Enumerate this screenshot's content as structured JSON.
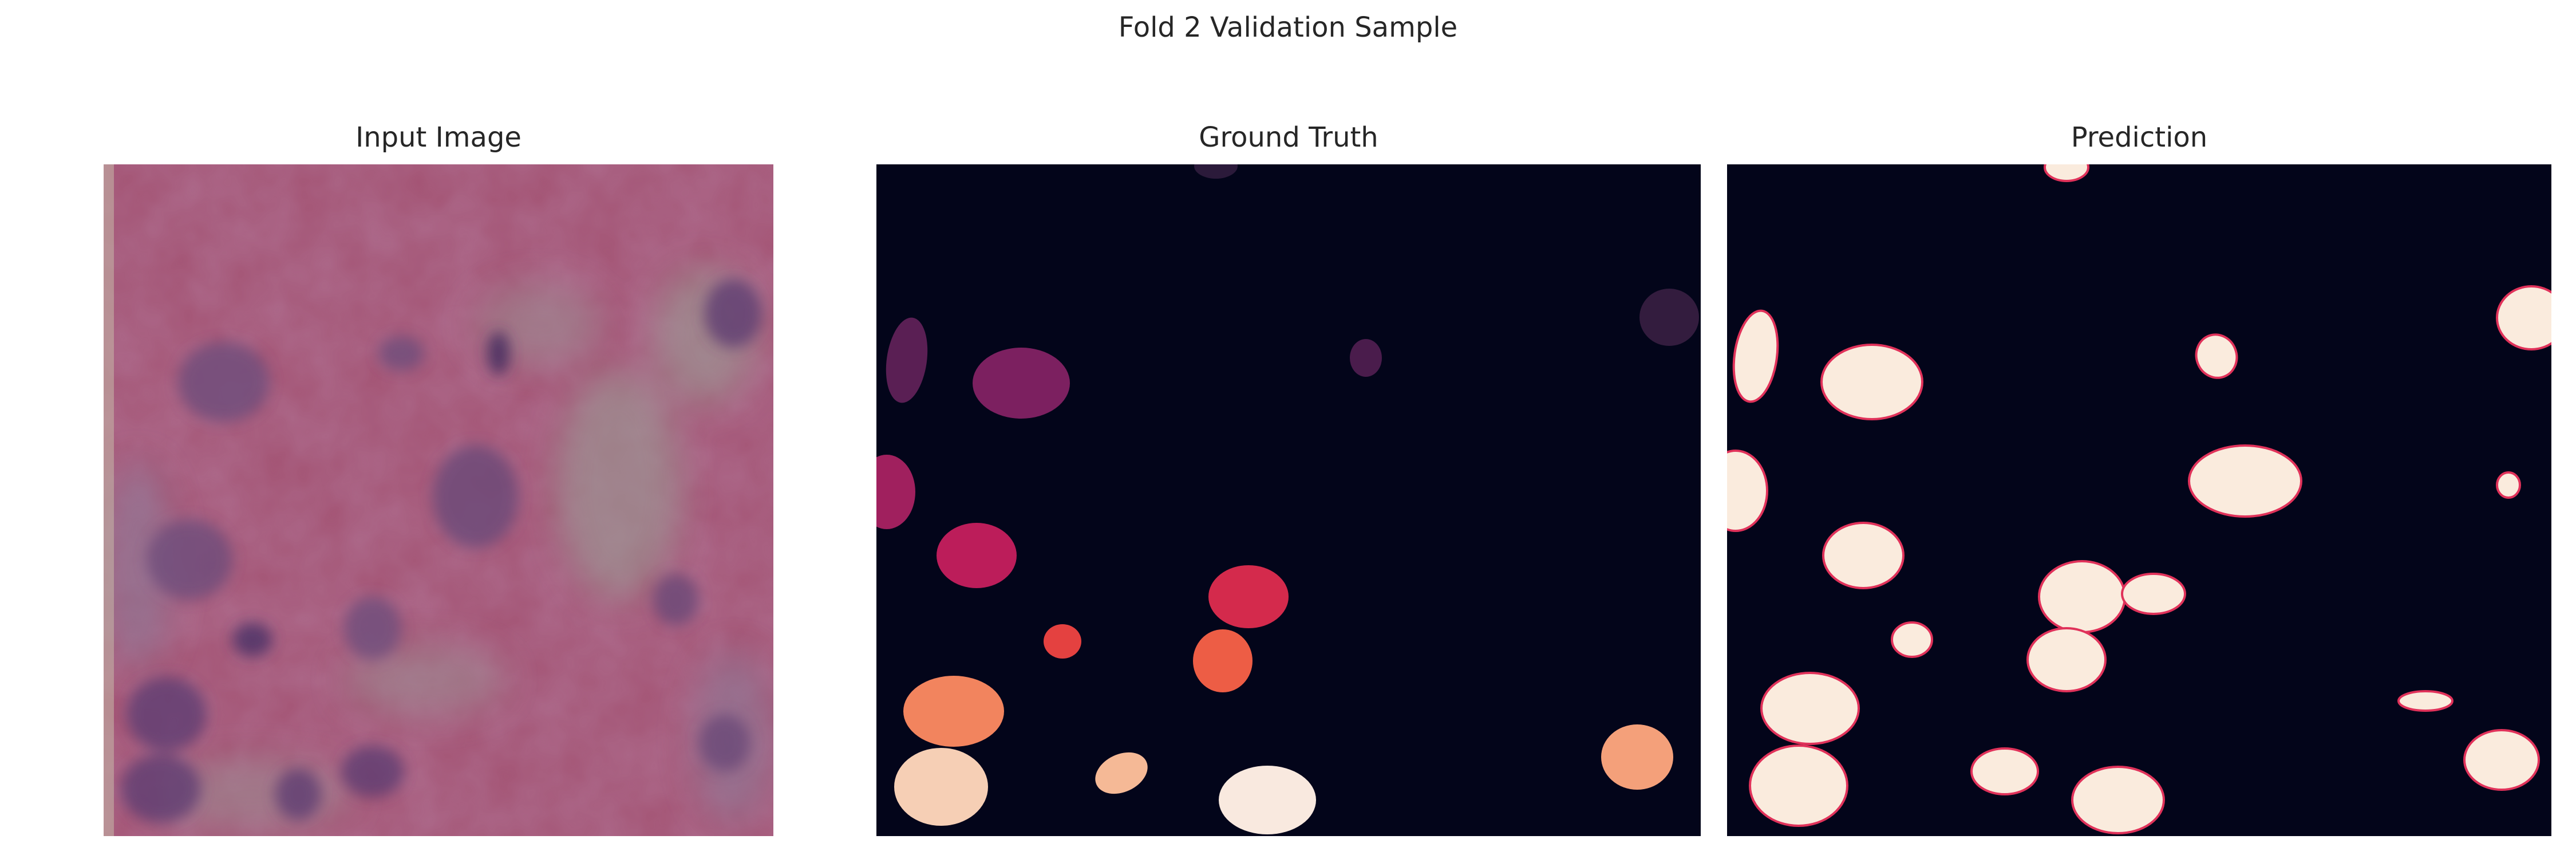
{
  "figure": {
    "title": "Fold 2 Validation Sample"
  },
  "panels": [
    {
      "title": "Input Image",
      "content": "histology-patch"
    },
    {
      "title": "Ground Truth",
      "content": "instance-mask",
      "colormap": "rocket"
    },
    {
      "title": "Prediction",
      "content": "binary-mask"
    }
  ],
  "colors": {
    "mask_background": "#03051a",
    "prediction_fill": "#faebdd",
    "prediction_edge": "#e0325a",
    "tissue_base": "#a35373",
    "nucleus": "#5a3f74"
  }
}
